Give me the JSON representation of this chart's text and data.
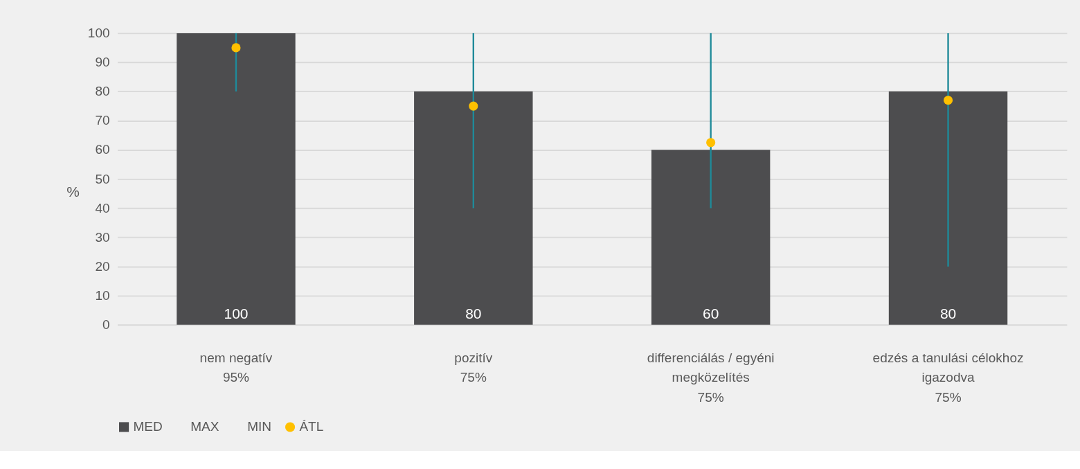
{
  "chart_data": {
    "type": "bar",
    "categories": [
      "nem negatív\n95%",
      "pozitív\n75%",
      "differenciálás / egyéni\nmegközelítés\n75%",
      "edzés a tanulási célokhoz\nigazodva\n75%"
    ],
    "ylabel": "%",
    "ylim": [
      0,
      100
    ],
    "yticks": [
      0,
      10,
      20,
      30,
      40,
      50,
      60,
      70,
      80,
      90,
      100
    ],
    "grid": "y",
    "legend": "bottom",
    "annotations": [
      "MAX",
      "MIN"
    ],
    "series": [
      {
        "name": "MED",
        "type": "bar",
        "color": "#4d4d4f",
        "values": [
          100,
          80,
          60,
          80
        ],
        "data_labels": true
      },
      {
        "name": "ÁTL",
        "type": "scatter",
        "marker": "circle",
        "color": "#ffc000",
        "values": [
          95,
          75,
          62.5,
          77
        ],
        "errors": [
          [
            80,
            100
          ],
          [
            40,
            100
          ],
          [
            40,
            100
          ],
          [
            20,
            100
          ]
        ]
      }
    ]
  }
}
